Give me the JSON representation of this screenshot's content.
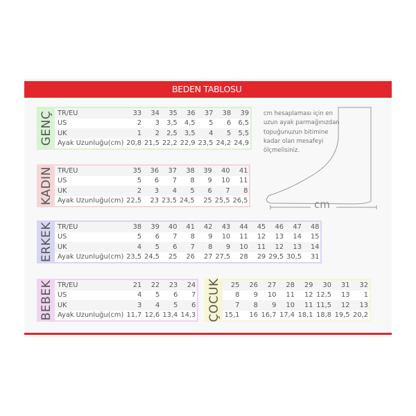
{
  "title": "BEDEN TABLOSU",
  "colors": {
    "accent": "#e3262b",
    "genc": "#d9f2d5",
    "kadin": "#f5d6d8",
    "erkek": "#d6d6f3",
    "bebek": "#f0d4f0",
    "cocuk": "#f7f5d2"
  },
  "tables": [
    {
      "id": "genc",
      "name": "GENÇ",
      "rows": [
        {
          "label": "TR/EU",
          "values": [
            "33",
            "34",
            "35",
            "36",
            "37",
            "38",
            "39"
          ]
        },
        {
          "label": "US",
          "values": [
            "2",
            "3",
            "3,5",
            "4,5",
            "5",
            "6",
            "6,5"
          ]
        },
        {
          "label": "UK",
          "values": [
            "1",
            "2",
            "2,5",
            "3,5",
            "4",
            "5",
            "5,5"
          ]
        },
        {
          "label": "Ayak Uzunluğu(cm)",
          "values": [
            "20,8",
            "21,5",
            "22,2",
            "22,9",
            "23,5",
            "24,2",
            "24,9"
          ]
        }
      ]
    },
    {
      "id": "kadin",
      "name": "KADIN",
      "rows": [
        {
          "label": "TR/EU",
          "values": [
            "35",
            "36",
            "37",
            "38",
            "39",
            "40",
            "41"
          ]
        },
        {
          "label": "US",
          "values": [
            "5",
            "6",
            "7",
            "8",
            "9",
            "10",
            "11"
          ]
        },
        {
          "label": "UK",
          "values": [
            "2",
            "3",
            "4",
            "5",
            "6",
            "7",
            "8"
          ]
        },
        {
          "label": "Ayak Uzunluğu(cm)",
          "values": [
            "22,5",
            "23",
            "23,5",
            "24,5",
            "25",
            "25,5",
            "26,5"
          ]
        }
      ]
    },
    {
      "id": "erkek",
      "name": "ERKEK",
      "rows": [
        {
          "label": "TR/EU",
          "values": [
            "38",
            "39",
            "40",
            "41",
            "42",
            "43",
            "44",
            "45",
            "46",
            "47",
            "48"
          ]
        },
        {
          "label": "US",
          "values": [
            "5",
            "6",
            "7",
            "8",
            "9",
            "10",
            "11",
            "12",
            "13",
            "14",
            "15"
          ]
        },
        {
          "label": "UK",
          "values": [
            "4",
            "5",
            "6",
            "7",
            "8",
            "9",
            "10",
            "11",
            "12",
            "13",
            "14"
          ]
        },
        {
          "label": "Ayak Uzunluğu(cm)",
          "values": [
            "23,5",
            "24,5",
            "25",
            "26",
            "27",
            "27,5",
            "28",
            "29",
            "29,5",
            "30,5",
            "31"
          ]
        }
      ]
    },
    {
      "id": "bebek",
      "name": "BEBEK",
      "rows": [
        {
          "label": "TR/EU",
          "values": [
            "21",
            "22",
            "23",
            "24"
          ]
        },
        {
          "label": "US",
          "values": [
            "4",
            "5",
            "6",
            "7"
          ]
        },
        {
          "label": "UK",
          "values": [
            "3",
            "4",
            "5",
            "6"
          ]
        },
        {
          "label": "Ayak Uzunluğu(cm)",
          "values": [
            "11,7",
            "12,6",
            "13,4",
            "14,3"
          ]
        }
      ]
    },
    {
      "id": "cocuk",
      "name": "ÇOCUK",
      "rows": [
        {
          "values": [
            "25",
            "26",
            "27",
            "28",
            "29",
            "30",
            "31",
            "32"
          ]
        },
        {
          "values": [
            "8",
            "9",
            "10",
            "11",
            "12",
            "12,5",
            "13",
            "1"
          ]
        },
        {
          "values": [
            "7",
            "8",
            "9",
            "10",
            "11",
            "11,5",
            "12",
            "13"
          ]
        },
        {
          "values": [
            "15,1",
            "16",
            "16,7",
            "17,4",
            "18,1",
            "18,8",
            "19,5",
            "20,2"
          ]
        }
      ]
    }
  ],
  "note": [
    "cm hesaplaması için en",
    "uzun ayak parmağınızdan",
    "topuğunuzun bitimine",
    "kadar olan mesafeyi",
    "ölçmelisiniz."
  ],
  "measure_label": "cm"
}
